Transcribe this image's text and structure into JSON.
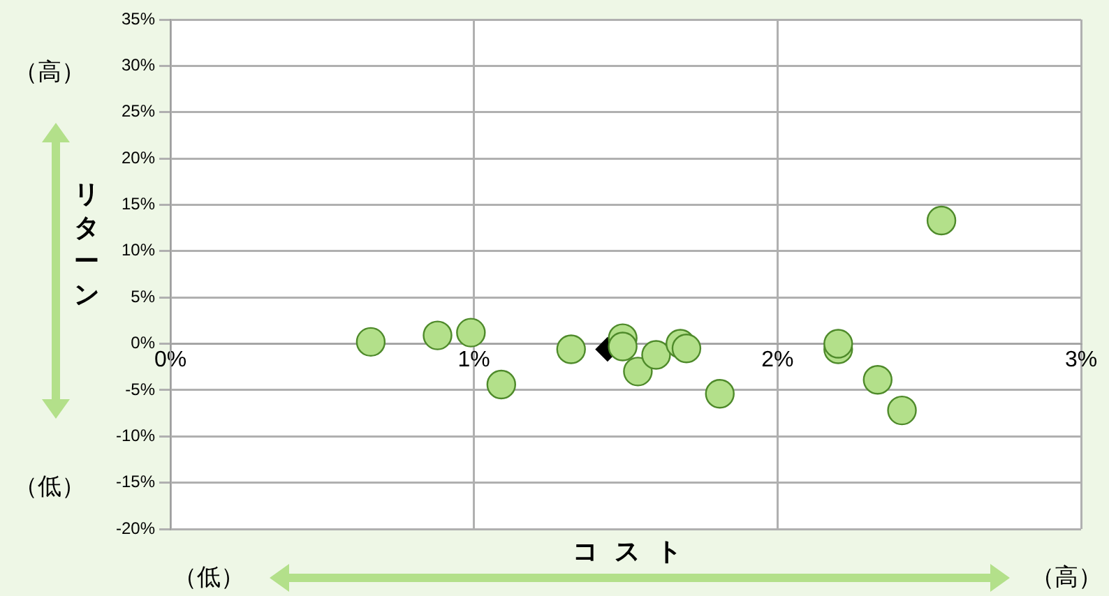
{
  "chart_data": {
    "type": "scatter",
    "xlabel": "コスト",
    "ylabel": "リターン",
    "annotations": [
      "（高）",
      "（低）",
      "（低）",
      "（高）"
    ],
    "xlim": [
      0,
      3
    ],
    "xticks": [
      {
        "value": 0,
        "label": "0%"
      },
      {
        "value": 1,
        "label": "1%"
      },
      {
        "value": 2,
        "label": "2%"
      },
      {
        "value": 3,
        "label": "3%"
      }
    ],
    "ylim": [
      -20,
      35
    ],
    "yticks": [
      {
        "value": -20,
        "label": "-20%"
      },
      {
        "value": -15,
        "label": "-15%"
      },
      {
        "value": -10,
        "label": "-10%"
      },
      {
        "value": -5,
        "label": "-5%"
      },
      {
        "value": 0,
        "label": "0%"
      },
      {
        "value": 5,
        "label": "5%"
      },
      {
        "value": 10,
        "label": "10%"
      },
      {
        "value": 15,
        "label": "15%"
      },
      {
        "value": 20,
        "label": "20%"
      },
      {
        "value": 25,
        "label": "25%"
      },
      {
        "value": 30,
        "label": "30%"
      },
      {
        "value": 35,
        "label": "35%"
      }
    ],
    "grid": true,
    "legend": false,
    "series": [
      {
        "color": "#b3e08a",
        "marker": "circle",
        "x": [
          0.66,
          0.88,
          0.99,
          1.09,
          1.32,
          1.49,
          1.49,
          1.54,
          1.6,
          1.68,
          1.7,
          1.81,
          2.2,
          2.2,
          2.33,
          2.41,
          2.54
        ],
        "values": [
          0.2,
          0.9,
          1.2,
          -4.4,
          -0.6,
          0.6,
          -0.3,
          -3.0,
          -1.2,
          0.0,
          -0.5,
          -5.4,
          -0.6,
          0.0,
          -3.9,
          -7.2,
          13.3
        ]
      },
      {
        "color": "#000000",
        "marker": "diamond",
        "x": [
          1.44
        ],
        "values": [
          -0.6
        ]
      }
    ]
  }
}
